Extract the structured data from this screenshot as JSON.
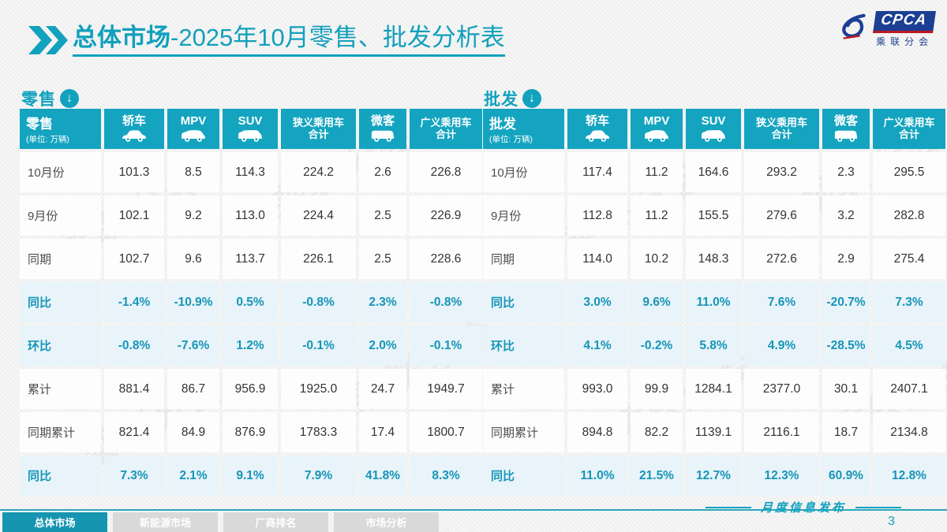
{
  "page": {
    "title_bold": "总体市场",
    "title_rest": "-2025年10月零售、批发分析表",
    "footer_note": "月度信息发布",
    "page_number": "3",
    "watermark": "乘联分会"
  },
  "logo": {
    "badge": "CPCA",
    "subtext": "乘联分会"
  },
  "colors": {
    "accent_teal": "#12a2be",
    "header_bg": "#14a4c0",
    "highlight_row_bg": "#e8f4f9",
    "highlight_text": "#1695b8",
    "logo_blue": "#1c3f94",
    "logo_red": "#c01622",
    "tab_active_bg": "#1695b0",
    "tab_inactive_bg": "#d9d9d9"
  },
  "tabs": [
    {
      "label": "总体市场",
      "active": true
    },
    {
      "label": "新能源市场",
      "active": false
    },
    {
      "label": "厂商排名",
      "active": false
    },
    {
      "label": "市场分析",
      "active": false
    }
  ],
  "columns": [
    {
      "label": "轿车",
      "icon": "sedan-icon"
    },
    {
      "label": "MPV",
      "icon": "mpv-icon"
    },
    {
      "label": "SUV",
      "icon": "suv-icon"
    },
    {
      "label": "狭义乘用车",
      "label2": "合计",
      "icon": null
    },
    {
      "label": "微客",
      "icon": "minivan-icon"
    },
    {
      "label": "广义乘用车",
      "label2": "合计",
      "icon": null
    }
  ],
  "tables": [
    {
      "section_label": "零售",
      "corner_title": "零售",
      "corner_unit": "(单位: 万辆)",
      "rows": [
        {
          "label": "10月份",
          "type": "data",
          "values": [
            "101.3",
            "8.5",
            "114.3",
            "224.2",
            "2.6",
            "226.8"
          ]
        },
        {
          "label": "9月份",
          "type": "data",
          "values": [
            "102.1",
            "9.2",
            "113.0",
            "224.4",
            "2.5",
            "226.9"
          ]
        },
        {
          "label": "同期",
          "type": "data",
          "values": [
            "102.7",
            "9.6",
            "113.7",
            "226.1",
            "2.5",
            "228.6"
          ]
        },
        {
          "label": "同比",
          "type": "highlight",
          "values": [
            "-1.4%",
            "-10.9%",
            "0.5%",
            "-0.8%",
            "2.3%",
            "-0.8%"
          ]
        },
        {
          "label": "环比",
          "type": "highlight",
          "values": [
            "-0.8%",
            "-7.6%",
            "1.2%",
            "-0.1%",
            "2.0%",
            "-0.1%"
          ]
        },
        {
          "label": "累计",
          "type": "data",
          "values": [
            "881.4",
            "86.7",
            "956.9",
            "1925.0",
            "24.7",
            "1949.7"
          ]
        },
        {
          "label": "同期累计",
          "type": "data",
          "values": [
            "821.4",
            "84.9",
            "876.9",
            "1783.3",
            "17.4",
            "1800.7"
          ]
        },
        {
          "label": "同比",
          "type": "highlight",
          "values": [
            "7.3%",
            "2.1%",
            "9.1%",
            "7.9%",
            "41.8%",
            "8.3%"
          ]
        }
      ]
    },
    {
      "section_label": "批发",
      "corner_title": "批发",
      "corner_unit": "(单位: 万辆)",
      "rows": [
        {
          "label": "10月份",
          "type": "data",
          "values": [
            "117.4",
            "11.2",
            "164.6",
            "293.2",
            "2.3",
            "295.5"
          ]
        },
        {
          "label": "9月份",
          "type": "data",
          "values": [
            "112.8",
            "11.2",
            "155.5",
            "279.6",
            "3.2",
            "282.8"
          ]
        },
        {
          "label": "同期",
          "type": "data",
          "values": [
            "114.0",
            "10.2",
            "148.3",
            "272.6",
            "2.9",
            "275.4"
          ]
        },
        {
          "label": "同比",
          "type": "highlight",
          "values": [
            "3.0%",
            "9.6%",
            "11.0%",
            "7.6%",
            "-20.7%",
            "7.3%"
          ]
        },
        {
          "label": "环比",
          "type": "highlight",
          "values": [
            "4.1%",
            "-0.2%",
            "5.8%",
            "4.9%",
            "-28.5%",
            "4.5%"
          ]
        },
        {
          "label": "累计",
          "type": "data",
          "values": [
            "993.0",
            "99.9",
            "1284.1",
            "2377.0",
            "30.1",
            "2407.1"
          ]
        },
        {
          "label": "同期累计",
          "type": "data",
          "values": [
            "894.8",
            "82.2",
            "1139.1",
            "2116.1",
            "18.7",
            "2134.8"
          ]
        },
        {
          "label": "同比",
          "type": "highlight",
          "values": [
            "11.0%",
            "21.5%",
            "12.7%",
            "12.3%",
            "60.9%",
            "12.8%"
          ]
        }
      ]
    }
  ]
}
